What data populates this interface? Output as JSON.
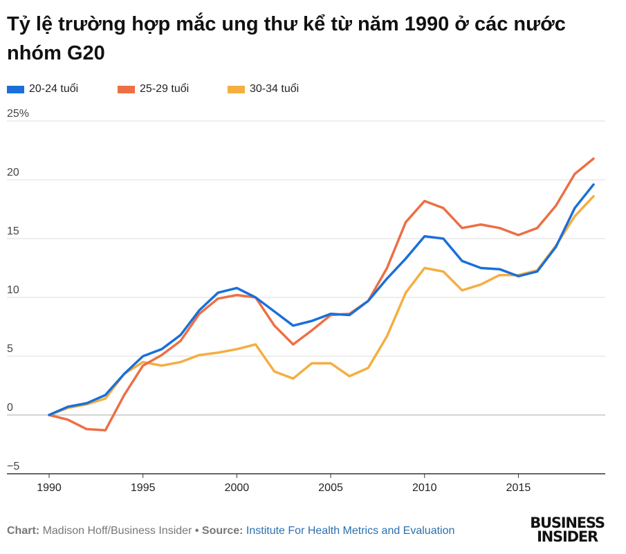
{
  "title": "Tỷ lệ trường hợp mắc ung thư kể từ năm 1990 ở các nước nhóm G20",
  "legend": [
    {
      "label": "20-24 tuổi",
      "color": "#1a6fd9"
    },
    {
      "label": "25-29 tuổi",
      "color": "#ec6f45"
    },
    {
      "label": "30-34 tuổi",
      "color": "#f4ae42"
    }
  ],
  "chart_data": {
    "type": "line",
    "title": "Tỷ lệ trường hợp mắc ung thư kể từ năm 1990 ở các nước nhóm G20",
    "xlabel": "",
    "ylabel": "",
    "x": [
      1990,
      1991,
      1992,
      1993,
      1994,
      1995,
      1996,
      1997,
      1998,
      1999,
      2000,
      2001,
      2002,
      2003,
      2004,
      2005,
      2006,
      2007,
      2008,
      2009,
      2010,
      2011,
      2012,
      2013,
      2014,
      2015,
      2016,
      2017,
      2018,
      2019
    ],
    "xticks": [
      1990,
      1995,
      2000,
      2005,
      2010,
      2015
    ],
    "xtick_labels": [
      "1990",
      "1995",
      "2000",
      "2005",
      "2010",
      "2015"
    ],
    "ylim": [
      -5,
      25
    ],
    "yticks": [
      -5,
      0,
      5,
      10,
      15,
      20,
      25
    ],
    "ytick_labels": [
      "−5",
      "0",
      "5",
      "10",
      "15",
      "20",
      "25%"
    ],
    "grid": true,
    "legend_position": "top-left",
    "series": [
      {
        "name": "20-24 tuổi",
        "color": "#1a6fd9",
        "values": [
          0,
          0.7,
          1.0,
          1.7,
          3.5,
          5.0,
          5.6,
          6.8,
          8.9,
          10.4,
          10.8,
          10.0,
          8.8,
          7.6,
          8.0,
          8.6,
          8.5,
          9.7,
          11.6,
          13.3,
          15.2,
          15.0,
          13.1,
          12.5,
          12.4,
          11.8,
          12.2,
          14.3,
          17.6,
          19.6
        ]
      },
      {
        "name": "25-29 tuổi",
        "color": "#ec6f45",
        "values": [
          0,
          -0.4,
          -1.2,
          -1.3,
          1.7,
          4.2,
          5.1,
          6.3,
          8.6,
          9.9,
          10.2,
          10.0,
          7.6,
          6.0,
          7.2,
          8.5,
          8.6,
          9.7,
          12.5,
          16.4,
          18.2,
          17.6,
          15.9,
          16.2,
          15.9,
          15.3,
          15.9,
          17.8,
          20.5,
          21.8
        ]
      },
      {
        "name": "30-34 tuổi",
        "color": "#f4ae42",
        "values": [
          0,
          0.6,
          0.9,
          1.4,
          3.5,
          4.5,
          4.2,
          4.5,
          5.1,
          5.3,
          5.6,
          6.0,
          3.7,
          3.1,
          4.4,
          4.4,
          3.3,
          4.0,
          6.7,
          10.4,
          12.5,
          12.2,
          10.6,
          11.1,
          11.9,
          11.9,
          12.3,
          14.4,
          16.9,
          18.6
        ]
      }
    ]
  },
  "footer": {
    "chart_label": "Chart:",
    "chart_author": "Madison Hoff/Business Insider",
    "separator": "•",
    "source_label": "Source:",
    "source_name": "Institute For Health Metrics and Evaluation"
  },
  "logo": {
    "line1": "BUSINESS",
    "line2": "INSIDER"
  }
}
